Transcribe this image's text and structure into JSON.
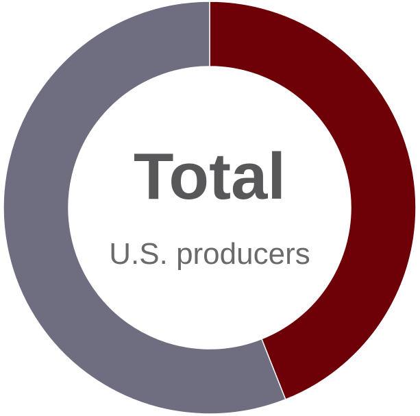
{
  "chart_data": {
    "type": "donut",
    "title": "Total",
    "subtitle": "U.S. producers",
    "values": [
      44,
      56
    ],
    "colors": [
      "#6e0008",
      "#6f6e80"
    ]
  }
}
